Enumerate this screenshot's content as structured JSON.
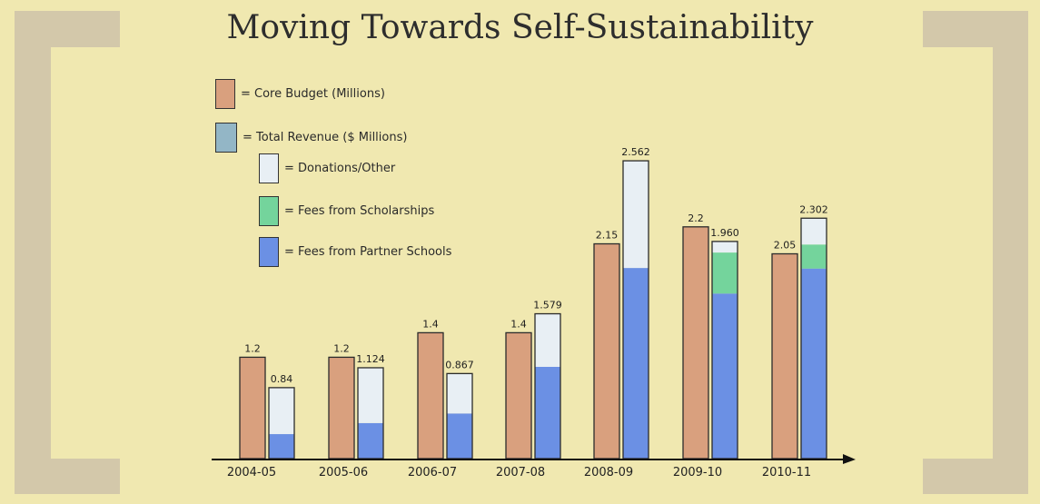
{
  "title": "Moving Towards Self-Sustainability",
  "legend": [
    {
      "label": "= Core Budget (Millions)",
      "color": "#d9a07e"
    },
    {
      "label": "= Total Revenue ($ Millions)",
      "color": "#93b6c6"
    },
    {
      "label": "= Donations/Other",
      "color": "#e8eff4"
    },
    {
      "label": "= Fees from Scholarships",
      "color": "#74d49c"
    },
    {
      "label": "= Fees from Partner Schools",
      "color": "#6b90e4"
    }
  ],
  "chart_data": {
    "type": "bar",
    "title": "Moving Towards Self-Sustainability",
    "xlabel": "",
    "ylabel": "",
    "grid": false,
    "legend_position": "top-left",
    "categories": [
      "2004-05",
      "2005-06",
      "2006-07",
      "2007-08",
      "2008-09",
      "2009-10",
      "2010-11"
    ],
    "series": [
      {
        "name": "Core Budget (Millions)",
        "values": [
          1.2,
          1.2,
          1.4,
          1.4,
          2.15,
          2.2,
          2.05
        ],
        "labels": [
          "1.2",
          "1.2",
          "1.4",
          "1.4",
          "2.15",
          "2.2",
          "2.05"
        ]
      },
      {
        "name": "Total Revenue ($ Millions)",
        "values": [
          0.84,
          1.124,
          0.867,
          1.579,
          2.562,
          1.96,
          2.302
        ],
        "labels": [
          "0.84",
          "1.124",
          "0.867",
          "1.579",
          "2.562",
          "1.960",
          "2.302"
        ],
        "stack": [
          {
            "name": "Fees from Partner Schools",
            "values": [
              0.29,
              0.44,
              0.46,
              1.0,
              1.64,
              1.49,
              1.82
            ]
          },
          {
            "name": "Fees from Scholarships",
            "values": [
              0,
              0,
              0,
              0,
              0,
              0.37,
              0.23
            ]
          },
          {
            "name": "Donations/Other",
            "values": [
              0.55,
              0.684,
              0.407,
              0.579,
              0.922,
              0.1,
              0.252
            ]
          }
        ]
      }
    ]
  }
}
